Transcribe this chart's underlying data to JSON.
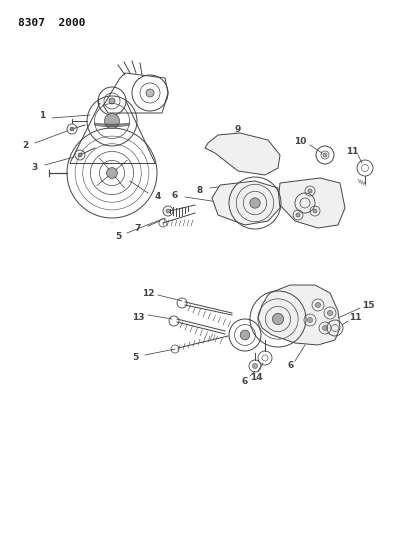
{
  "title": "8307 2000",
  "bg_color": "#ffffff",
  "line_color": "#444444",
  "label_color": "#111111",
  "fig_width": 4.1,
  "fig_height": 5.33,
  "dpi": 100
}
